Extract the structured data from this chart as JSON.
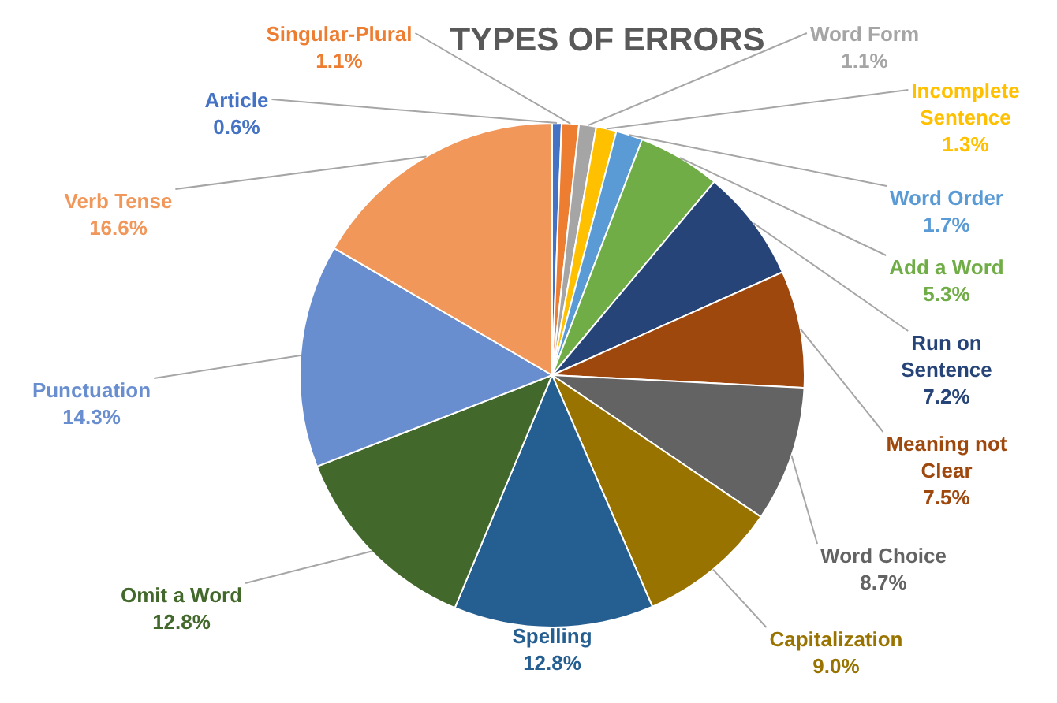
{
  "chart_data": {
    "type": "pie",
    "title": "TYPES OF ERRORS",
    "categories": [
      "Article",
      "Singular-Plural",
      "Word Form",
      "Incomplete Sentence",
      "Word Order",
      "Add a Word",
      "Run on Sentence",
      "Meaning not Clear",
      "Word Choice",
      "Capitalization",
      "Spelling",
      "Omit a Word",
      "Punctuation",
      "Verb Tense"
    ],
    "values": [
      0.6,
      1.1,
      1.1,
      1.3,
      1.7,
      5.3,
      7.2,
      7.5,
      8.7,
      9.0,
      12.8,
      12.8,
      14.3,
      16.6
    ],
    "colors": [
      "#4472c4",
      "#ed7d31",
      "#a5a5a5",
      "#ffc000",
      "#5b9bd5",
      "#70ad47",
      "#264478",
      "#9e480e",
      "#636363",
      "#997300",
      "#255e91",
      "#43682b",
      "#698ed0",
      "#f1975a"
    ],
    "value_labels": [
      "0.6%",
      "1.1%",
      "1.1%",
      "1.3%",
      "1.7%",
      "5.3%",
      "7.2%",
      "7.5%",
      "8.7%",
      "9.0%",
      "12.8%",
      "12.8%",
      "14.3%",
      "16.6%"
    ]
  }
}
